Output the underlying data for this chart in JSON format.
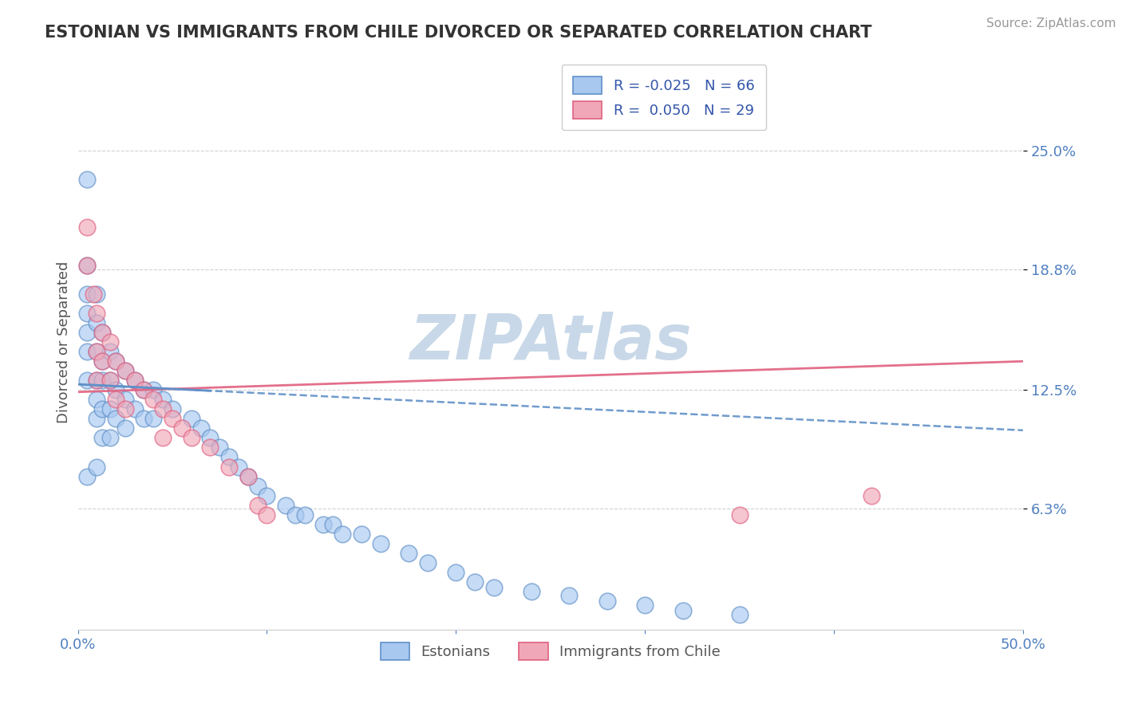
{
  "title": "ESTONIAN VS IMMIGRANTS FROM CHILE DIVORCED OR SEPARATED CORRELATION CHART",
  "source": "Source: ZipAtlas.com",
  "ylabel": "Divorced or Separated",
  "xlim": [
    0.0,
    0.5
  ],
  "ylim": [
    0.0,
    0.3
  ],
  "xticks": [
    0.0,
    0.1,
    0.2,
    0.3,
    0.4,
    0.5
  ],
  "xticklabels": [
    "0.0%",
    "",
    "",
    "",
    "",
    "50.0%"
  ],
  "yticks_right": [
    0.063,
    0.125,
    0.188,
    0.25
  ],
  "ytick_labels_right": [
    "6.3%",
    "12.5%",
    "18.8%",
    "25.0%"
  ],
  "grid_color": "#cccccc",
  "background_color": "#ffffff",
  "watermark": "ZIPAtlas",
  "watermark_color": "#c8d8e8",
  "legend_R1": "-0.025",
  "legend_N1": "66",
  "legend_R2": "0.050",
  "legend_N2": "29",
  "estonian_color": "#a8c8f0",
  "chile_color": "#f0a8b8",
  "trend1_color": "#6090c8",
  "trend2_color": "#e06080",
  "legend_label1": "Estonians",
  "legend_label2": "Immigrants from Chile",
  "estonian_x": [
    0.005,
    0.005,
    0.005,
    0.005,
    0.005,
    0.005,
    0.005,
    0.005,
    0.01,
    0.01,
    0.01,
    0.01,
    0.01,
    0.01,
    0.01,
    0.013,
    0.013,
    0.013,
    0.013,
    0.013,
    0.017,
    0.017,
    0.017,
    0.017,
    0.02,
    0.02,
    0.02,
    0.025,
    0.025,
    0.025,
    0.03,
    0.03,
    0.035,
    0.035,
    0.04,
    0.04,
    0.045,
    0.05,
    0.06,
    0.065,
    0.07,
    0.075,
    0.08,
    0.085,
    0.09,
    0.095,
    0.1,
    0.11,
    0.115,
    0.12,
    0.13,
    0.135,
    0.14,
    0.15,
    0.16,
    0.175,
    0.185,
    0.2,
    0.21,
    0.22,
    0.24,
    0.26,
    0.28,
    0.3,
    0.32,
    0.35
  ],
  "estonian_y": [
    0.235,
    0.19,
    0.175,
    0.165,
    0.155,
    0.145,
    0.13,
    0.08,
    0.175,
    0.16,
    0.145,
    0.13,
    0.12,
    0.11,
    0.085,
    0.155,
    0.14,
    0.13,
    0.115,
    0.1,
    0.145,
    0.13,
    0.115,
    0.1,
    0.14,
    0.125,
    0.11,
    0.135,
    0.12,
    0.105,
    0.13,
    0.115,
    0.125,
    0.11,
    0.125,
    0.11,
    0.12,
    0.115,
    0.11,
    0.105,
    0.1,
    0.095,
    0.09,
    0.085,
    0.08,
    0.075,
    0.07,
    0.065,
    0.06,
    0.06,
    0.055,
    0.055,
    0.05,
    0.05,
    0.045,
    0.04,
    0.035,
    0.03,
    0.025,
    0.022,
    0.02,
    0.018,
    0.015,
    0.013,
    0.01,
    0.008
  ],
  "chile_x": [
    0.005,
    0.005,
    0.008,
    0.01,
    0.01,
    0.01,
    0.013,
    0.013,
    0.017,
    0.017,
    0.02,
    0.02,
    0.025,
    0.025,
    0.03,
    0.035,
    0.04,
    0.045,
    0.045,
    0.05,
    0.055,
    0.06,
    0.07,
    0.08,
    0.09,
    0.095,
    0.1,
    0.35,
    0.42
  ],
  "chile_y": [
    0.21,
    0.19,
    0.175,
    0.165,
    0.145,
    0.13,
    0.155,
    0.14,
    0.15,
    0.13,
    0.14,
    0.12,
    0.135,
    0.115,
    0.13,
    0.125,
    0.12,
    0.115,
    0.1,
    0.11,
    0.105,
    0.1,
    0.095,
    0.085,
    0.08,
    0.065,
    0.06,
    0.06,
    0.07
  ],
  "trend_x_start": 0.0,
  "trend_x_end": 0.5,
  "estonian_trend_y_start": 0.128,
  "estonian_trend_y_end": 0.104,
  "chile_trend_y_start": 0.124,
  "chile_trend_y_end": 0.14
}
